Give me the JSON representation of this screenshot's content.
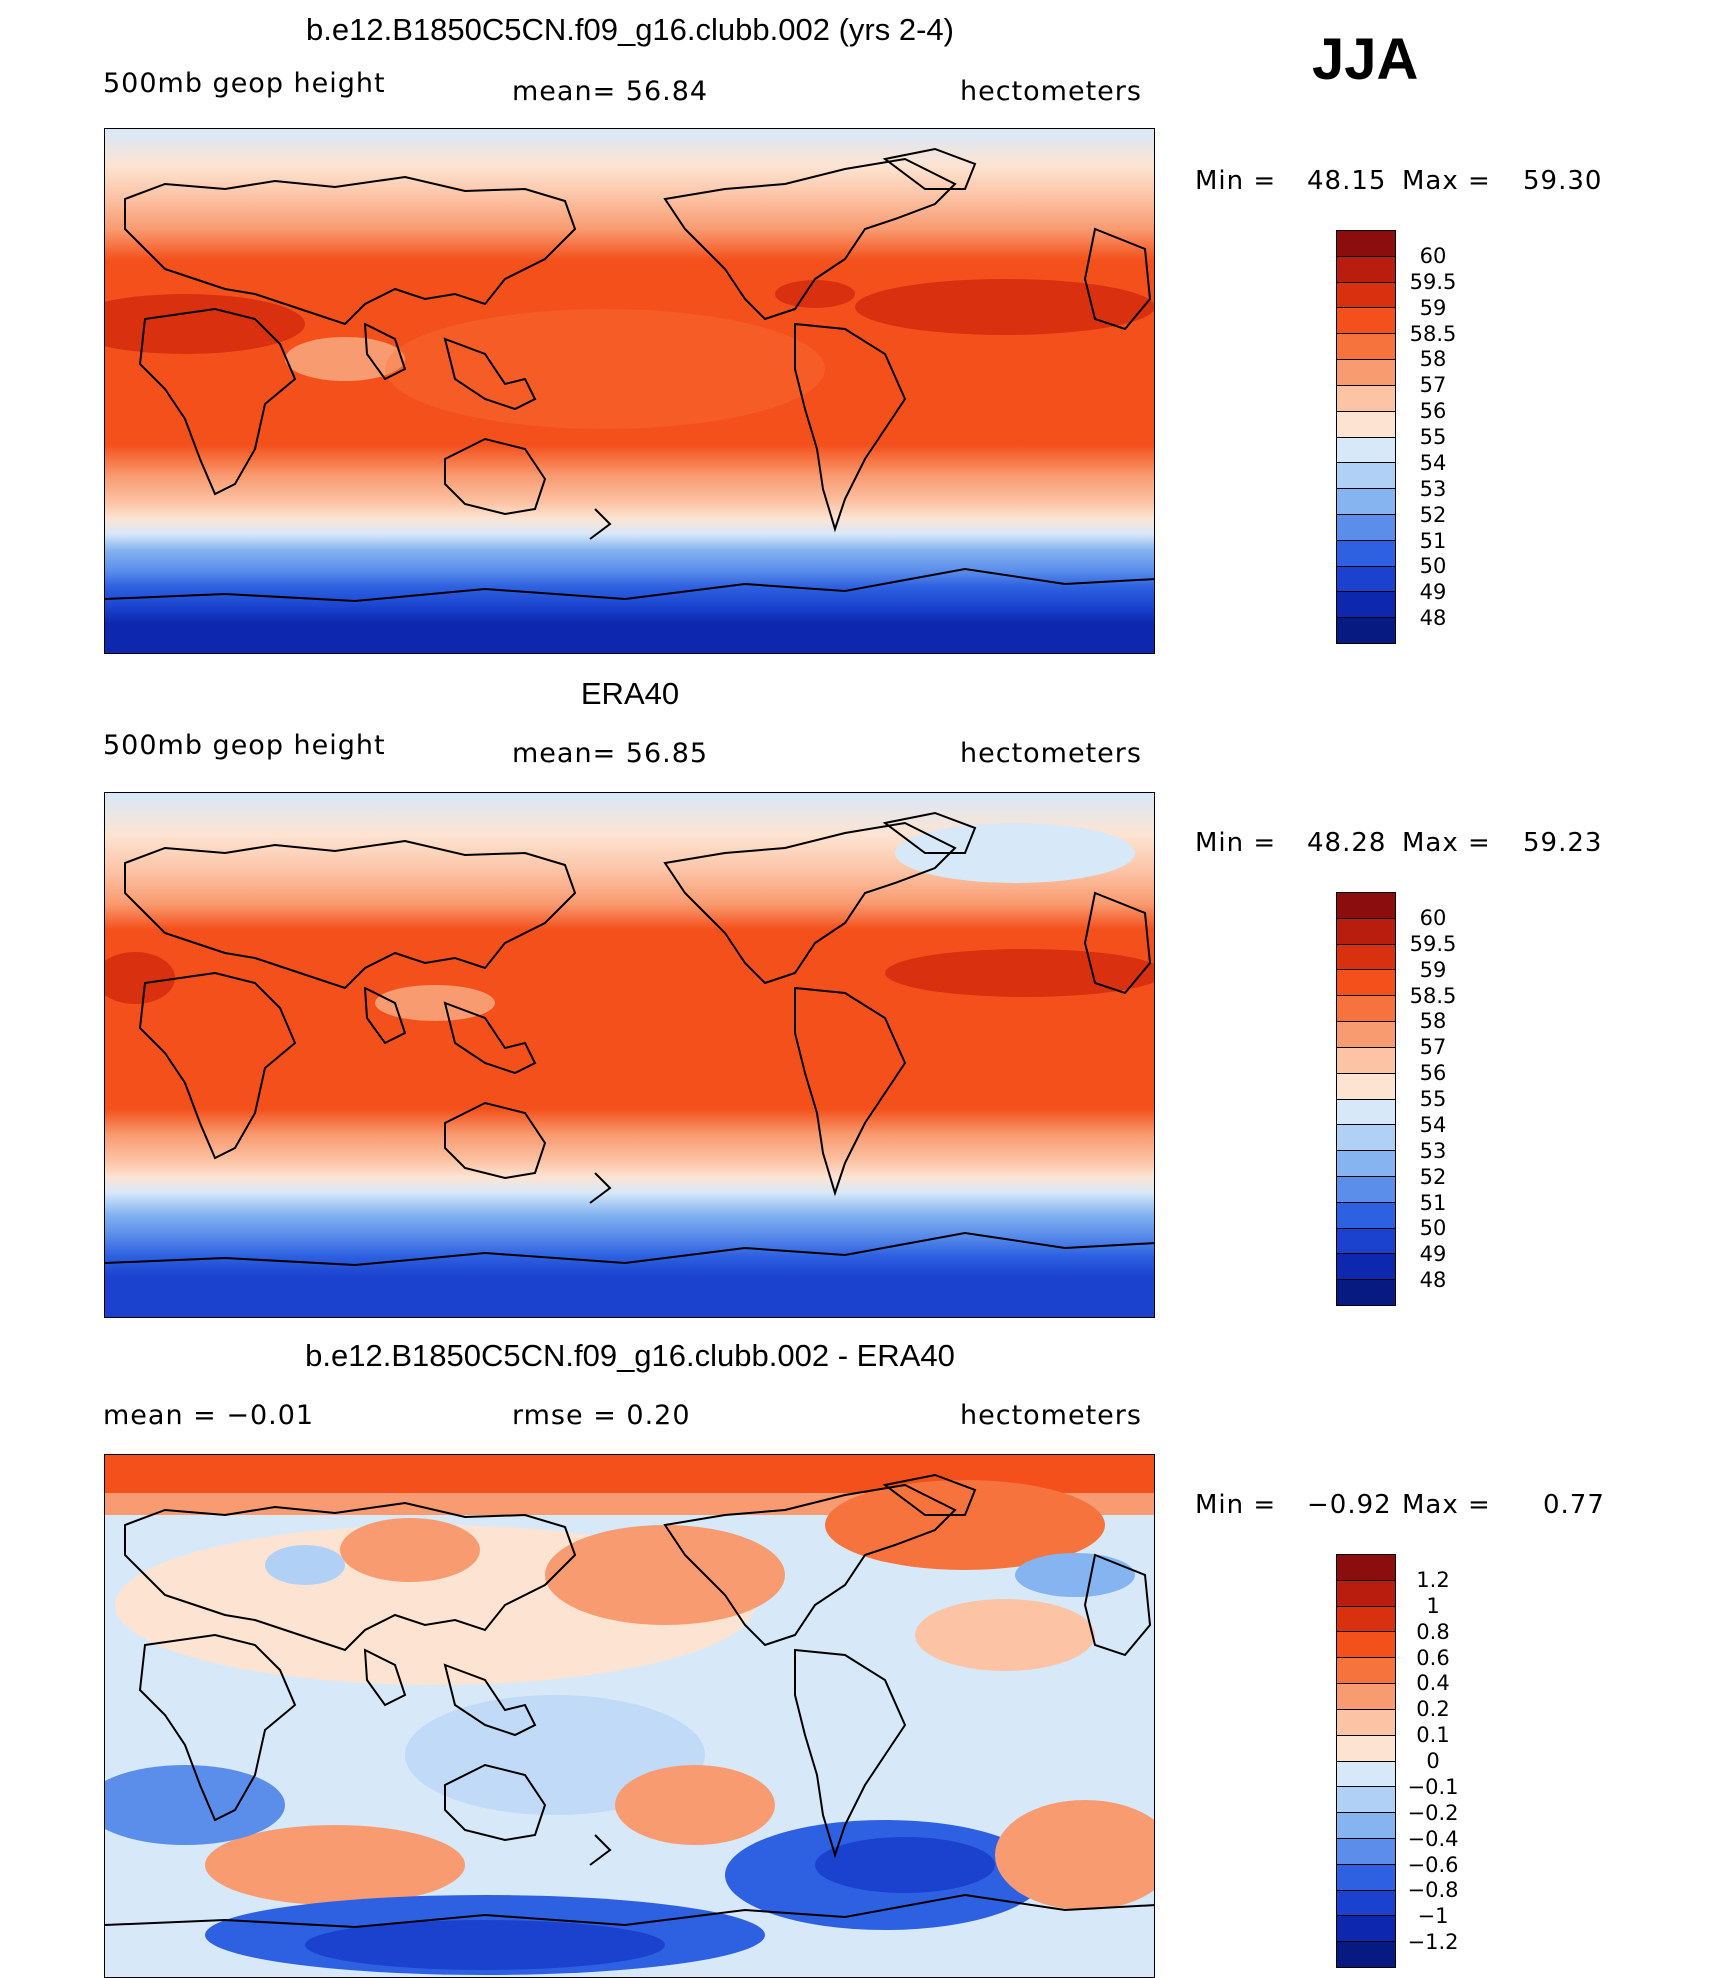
{
  "season": "JJA",
  "panels": [
    {
      "title": "b.e12.B1850C5CN.f09_g16.clubb.002 (yrs 2-4)",
      "left_label": "500mb  geop  height",
      "center_label": "mean=   56.84",
      "right_label": "hectometers",
      "min_label": "Min  =",
      "min_value": "48.15",
      "max_label": "Max  =",
      "max_value": "59.30",
      "colorbar": {
        "ticks": [
          "60",
          "59.5",
          "59",
          "58.5",
          "58",
          "57",
          "56",
          "55",
          "54",
          "53",
          "52",
          "51",
          "50",
          "49",
          "48"
        ],
        "colors": [
          "#8b0d0d",
          "#b81d0d",
          "#d93010",
          "#f4501b",
          "#f7733d",
          "#f99b71",
          "#fcc3a5",
          "#fde4d2",
          "#d7e8f9",
          "#b0d0f5",
          "#86b4f1",
          "#5a8eea",
          "#2e61e1",
          "#1a42cf",
          "#0d28ae",
          "#061a82"
        ]
      }
    },
    {
      "title": "ERA40",
      "left_label": "500mb  geop  height",
      "center_label": "mean=   56.85",
      "right_label": "hectometers",
      "min_label": "Min  =",
      "min_value": "48.28",
      "max_label": "Max  =",
      "max_value": "59.23",
      "colorbar": {
        "ticks": [
          "60",
          "59.5",
          "59",
          "58.5",
          "58",
          "57",
          "56",
          "55",
          "54",
          "53",
          "52",
          "51",
          "50",
          "49",
          "48"
        ],
        "colors": [
          "#8b0d0d",
          "#b81d0d",
          "#d93010",
          "#f4501b",
          "#f7733d",
          "#f99b71",
          "#fcc3a5",
          "#fde4d2",
          "#d7e8f9",
          "#b0d0f5",
          "#86b4f1",
          "#5a8eea",
          "#2e61e1",
          "#1a42cf",
          "#0d28ae",
          "#061a82"
        ]
      }
    },
    {
      "title": "b.e12.B1850C5CN.f09_g16.clubb.002 - ERA40",
      "left_label": "mean  =    −0.01",
      "center_label": "rmse  =     0.20",
      "right_label": "hectometers",
      "min_label": "Min  =",
      "min_value": "−0.92",
      "max_label": "Max  =",
      "max_value": "0.77",
      "colorbar": {
        "ticks": [
          "1.2",
          "1",
          "0.8",
          "0.6",
          "0.4",
          "0.2",
          "0.1",
          "0",
          "−0.1",
          "−0.2",
          "−0.4",
          "−0.6",
          "−0.8",
          "−1",
          "−1.2"
        ],
        "colors": [
          "#8b0d0d",
          "#b81d0d",
          "#d93010",
          "#f4501b",
          "#f7733d",
          "#f99b71",
          "#fcc3a5",
          "#fde4d2",
          "#d7e8f9",
          "#b0d0f5",
          "#86b4f1",
          "#5a8eea",
          "#2e61e1",
          "#1a42cf",
          "#0d28ae",
          "#061a82"
        ]
      }
    }
  ]
}
